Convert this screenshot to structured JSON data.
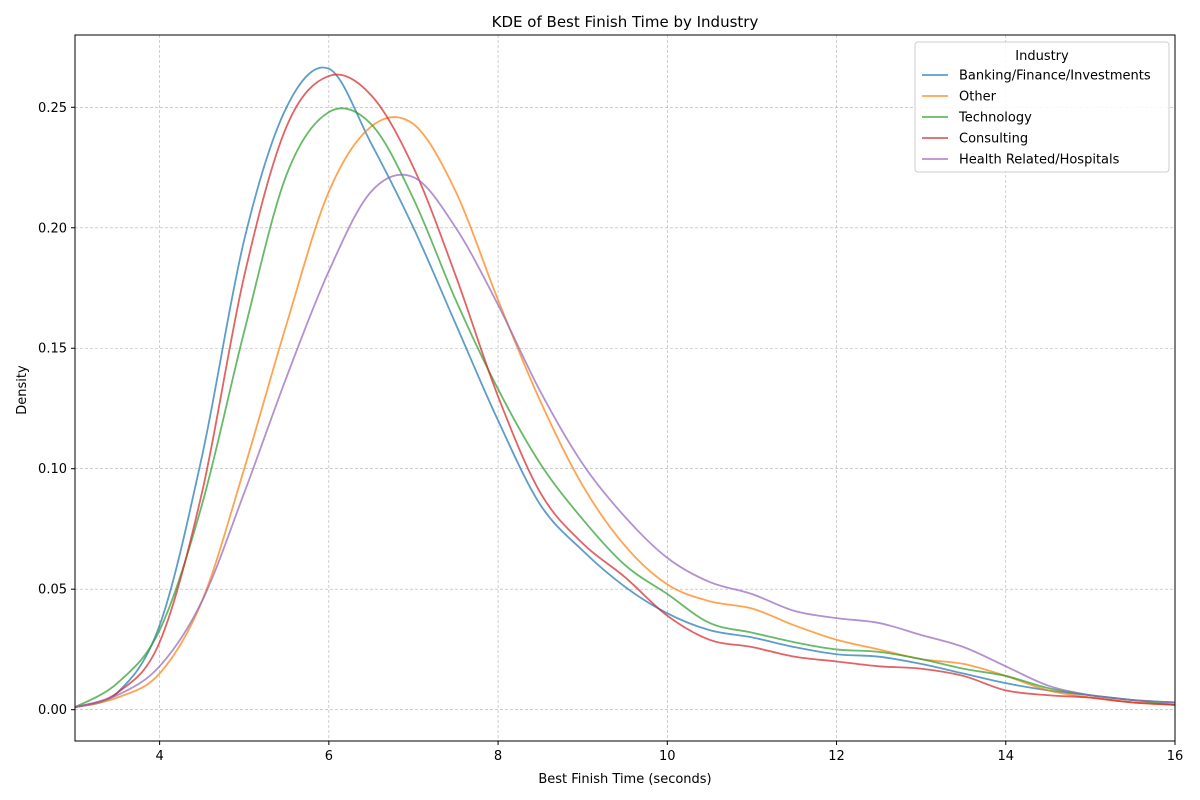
{
  "chart_data": {
    "type": "line",
    "title": "KDE of Best Finish Time by Industry",
    "xlabel": "Best Finish Time (seconds)",
    "ylabel": "Density",
    "xlim": [
      3,
      16
    ],
    "ylim": [
      -0.013,
      0.28
    ],
    "xticks": [
      4,
      6,
      8,
      10,
      12,
      14,
      16
    ],
    "xtick_labels": [
      "4",
      "6",
      "8",
      "10",
      "12",
      "14",
      "16"
    ],
    "yticks": [
      0,
      0.05,
      0.1,
      0.15,
      0.2,
      0.25
    ],
    "ytick_labels": [
      "0.00",
      "0.05",
      "0.10",
      "0.15",
      "0.20",
      "0.25"
    ],
    "grid": true,
    "legend": {
      "title": "Industry",
      "position": "top-right"
    },
    "series": [
      {
        "name": "Banking/Finance/Investments",
        "color": "#1f77b4",
        "x": [
          3,
          3.5,
          4,
          4.5,
          5,
          5.5,
          6,
          6.5,
          7,
          7.5,
          8,
          8.5,
          9,
          9.5,
          10,
          10.5,
          11,
          11.5,
          12,
          12.5,
          13,
          13.5,
          14,
          14.5,
          15,
          15.5,
          16
        ],
        "y": [
          0.001,
          0.007,
          0.035,
          0.105,
          0.195,
          0.25,
          0.266,
          0.235,
          0.2,
          0.16,
          0.12,
          0.085,
          0.066,
          0.051,
          0.04,
          0.033,
          0.03,
          0.026,
          0.023,
          0.022,
          0.019,
          0.015,
          0.011,
          0.008,
          0.006,
          0.004,
          0.003
        ]
      },
      {
        "name": "Other",
        "color": "#ff7f0e",
        "x": [
          3,
          3.5,
          4,
          4.5,
          5,
          5.5,
          6,
          6.5,
          7,
          7.5,
          8,
          8.5,
          9,
          9.5,
          10,
          10.5,
          11,
          11.5,
          12,
          12.5,
          13,
          13.5,
          14,
          14.5,
          15,
          15.5,
          16
        ],
        "y": [
          0.001,
          0.005,
          0.015,
          0.045,
          0.1,
          0.16,
          0.215,
          0.242,
          0.243,
          0.215,
          0.17,
          0.128,
          0.093,
          0.068,
          0.052,
          0.045,
          0.042,
          0.035,
          0.029,
          0.025,
          0.021,
          0.019,
          0.014,
          0.008,
          0.005,
          0.003,
          0.002
        ]
      },
      {
        "name": "Technology",
        "color": "#2ca02c",
        "x": [
          3,
          3.5,
          4,
          4.5,
          5,
          5.5,
          6,
          6.5,
          7,
          7.5,
          8,
          8.5,
          9,
          9.5,
          10,
          10.5,
          11,
          11.5,
          12,
          12.5,
          13,
          13.5,
          14,
          14.5,
          15,
          15.5,
          16
        ],
        "y": [
          0.001,
          0.011,
          0.033,
          0.085,
          0.157,
          0.222,
          0.248,
          0.243,
          0.212,
          0.17,
          0.133,
          0.102,
          0.079,
          0.06,
          0.048,
          0.036,
          0.032,
          0.028,
          0.025,
          0.024,
          0.021,
          0.017,
          0.014,
          0.009,
          0.006,
          0.004,
          0.002
        ]
      },
      {
        "name": "Consulting",
        "color": "#d62728",
        "x": [
          3,
          3.5,
          4,
          4.5,
          5,
          5.5,
          6,
          6.5,
          7,
          7.5,
          8,
          8.5,
          9,
          9.5,
          10,
          10.5,
          11,
          11.5,
          12,
          12.5,
          13,
          13.5,
          14,
          14.5,
          15,
          15.5,
          16
        ],
        "y": [
          0.001,
          0.007,
          0.028,
          0.09,
          0.18,
          0.242,
          0.263,
          0.255,
          0.225,
          0.18,
          0.13,
          0.09,
          0.069,
          0.055,
          0.039,
          0.029,
          0.026,
          0.022,
          0.02,
          0.018,
          0.017,
          0.014,
          0.008,
          0.006,
          0.005,
          0.003,
          0.002
        ]
      },
      {
        "name": "Health Related/Hospitals",
        "color": "#9467bd",
        "x": [
          3,
          3.5,
          4,
          4.5,
          5,
          5.5,
          6,
          6.5,
          7,
          7.5,
          8,
          8.5,
          9,
          9.5,
          10,
          10.5,
          11,
          11.5,
          12,
          12.5,
          13,
          13.5,
          14,
          14.5,
          15,
          15.5,
          16
        ],
        "y": [
          0.001,
          0.006,
          0.018,
          0.045,
          0.09,
          0.138,
          0.182,
          0.215,
          0.221,
          0.2,
          0.168,
          0.132,
          0.102,
          0.08,
          0.063,
          0.053,
          0.048,
          0.041,
          0.038,
          0.036,
          0.031,
          0.026,
          0.018,
          0.01,
          0.006,
          0.004,
          0.003
        ]
      }
    ]
  }
}
